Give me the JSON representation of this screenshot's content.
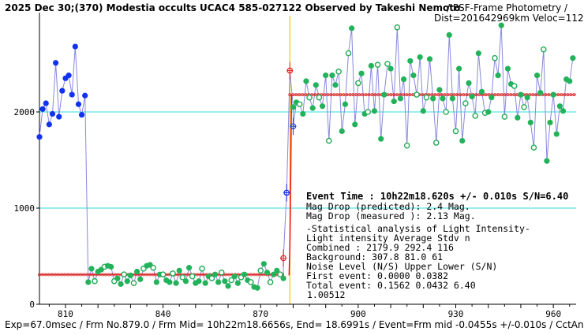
{
  "header": {
    "title": "2025 Dec 30;(370) Modestia occults UCAC4 585-027122 Observed by Takeshi Nemoto",
    "method": "/ PSF-Frame Photometry /",
    "dist_veloc": "Dist=201642969km Veloc=11205m/sec"
  },
  "footer": "Exp=67.0msec / Frm No.879.0 / Frm Mid= 10h22m18.6656s, End= 18.6991s / Event=Frm mid -0.0455s +/-0.010s / CctAngle=0.0deg",
  "info": {
    "event_time": "Event Time : 10h22m18.620s  +/- 0.010s  S/N=6.40",
    "mag_pred": "Mag Drop (predicted):  2.4   Mag.",
    "mag_meas": "Mag Drop (measured ):  2.13  Mag.",
    "stat_title": "-Statistical analysis of Light Intensity-",
    "stat_header": "Light intensity    Average   Stdv      n",
    "combined": "  Combined  :       2179.9   292.4    116",
    "background": "  Background:        307.8    81.0     61",
    "noise_header": "Noise Level (N/S)  Upper     Lower    (S/N)",
    "first_event": "  First event:     0.0000    0.0382",
    "total_event": "  Total event:     0.1562    0.0432    6.40",
    "ratio": "1.00512"
  },
  "chart_data": {
    "type": "line",
    "xlim": [
      802,
      967
    ],
    "ylim": [
      0,
      3000
    ],
    "x_ticks": [
      810,
      840,
      870,
      900,
      930,
      960
    ],
    "y_ticks": [
      0,
      1000,
      2000
    ],
    "reference_lines": [
      2000,
      1000
    ],
    "event_frame": 879,
    "levels": {
      "combined": 2179.9,
      "background": 307.8
    },
    "series": [
      {
        "marker": "blue-dot",
        "x": [
          802,
          803,
          804,
          805,
          806,
          807,
          808,
          809,
          810,
          811,
          812,
          813,
          814,
          815,
          816
        ],
        "y": [
          1740,
          2030,
          2090,
          1870,
          1980,
          2510,
          1950,
          2220,
          2350,
          2380,
          2180,
          2680,
          2080,
          1970,
          2170
        ]
      },
      {
        "marker": "green-dot",
        "x": [
          817,
          818,
          819,
          820,
          821,
          822,
          823,
          824,
          825,
          826,
          827,
          828,
          829,
          830,
          831,
          832,
          833,
          834,
          835,
          836,
          837,
          838,
          839,
          840,
          841,
          842,
          843,
          844,
          845,
          846,
          847,
          848,
          849,
          850,
          851,
          852,
          853,
          854,
          855,
          856,
          857,
          858,
          859,
          860,
          861,
          862,
          863,
          864,
          865,
          866,
          867,
          868,
          869,
          870,
          871,
          872,
          873,
          874,
          875,
          876,
          877
        ],
        "y": [
          230,
          370,
          240,
          340,
          360,
          390,
          400,
          390,
          240,
          270,
          210,
          310,
          240,
          300,
          220,
          340,
          260,
          370,
          400,
          410,
          380,
          230,
          310,
          310,
          250,
          230,
          320,
          220,
          350,
          280,
          240,
          380,
          290,
          220,
          240,
          370,
          220,
          290,
          270,
          310,
          230,
          330,
          240,
          190,
          250,
          290,
          220,
          280,
          310,
          250,
          230,
          180,
          170,
          350,
          420,
          330,
          230,
          310,
          350,
          310,
          270
        ]
      },
      {
        "marker": "green-dot",
        "x": [
          880,
          881,
          882,
          883,
          884,
          885,
          886,
          887,
          888,
          889,
          890,
          891,
          892,
          893,
          894,
          895,
          896,
          897,
          898,
          899,
          900,
          901,
          902,
          903,
          904,
          905,
          906,
          907,
          908,
          909,
          910,
          911,
          912,
          913,
          914,
          915,
          916,
          917,
          918,
          919,
          920,
          921,
          922,
          923,
          924,
          925,
          926,
          927,
          928,
          929,
          930,
          931,
          932,
          933,
          934,
          935,
          936,
          937,
          938,
          939,
          940,
          941,
          942,
          943,
          944,
          945,
          946,
          947,
          948,
          949,
          950,
          951,
          952,
          953,
          954,
          955,
          956,
          957,
          958,
          959,
          960,
          961,
          962,
          963,
          964,
          965,
          966
        ],
        "y": [
          2050,
          2100,
          2080,
          1980,
          2320,
          2150,
          2040,
          2280,
          2150,
          2060,
          2380,
          1700,
          2380,
          2280,
          2420,
          1800,
          2080,
          2610,
          2870,
          1870,
          2300,
          2400,
          1980,
          2000,
          2480,
          2010,
          2490,
          1720,
          2180,
          2500,
          2450,
          2110,
          2880,
          2140,
          2340,
          1650,
          2530,
          2380,
          2180,
          2570,
          2010,
          2150,
          2550,
          2140,
          1680,
          2230,
          2140,
          2000,
          2800,
          2140,
          1800,
          2450,
          1700,
          2090,
          2300,
          2160,
          1960,
          2610,
          2210,
          1990,
          2000,
          2150,
          2560,
          2380,
          2900,
          1950,
          2450,
          2290,
          2270,
          1940,
          2180,
          2050,
          2150,
          1890,
          1630,
          2380,
          2200,
          2650,
          1490,
          1890,
          2180,
          1770,
          2060,
          2010,
          2340,
          2320,
          2560
        ]
      },
      {
        "marker": "transition",
        "x": [
          877,
          878,
          879,
          880
        ],
        "y": [
          480,
          1160,
          2430,
          1850
        ]
      }
    ]
  }
}
